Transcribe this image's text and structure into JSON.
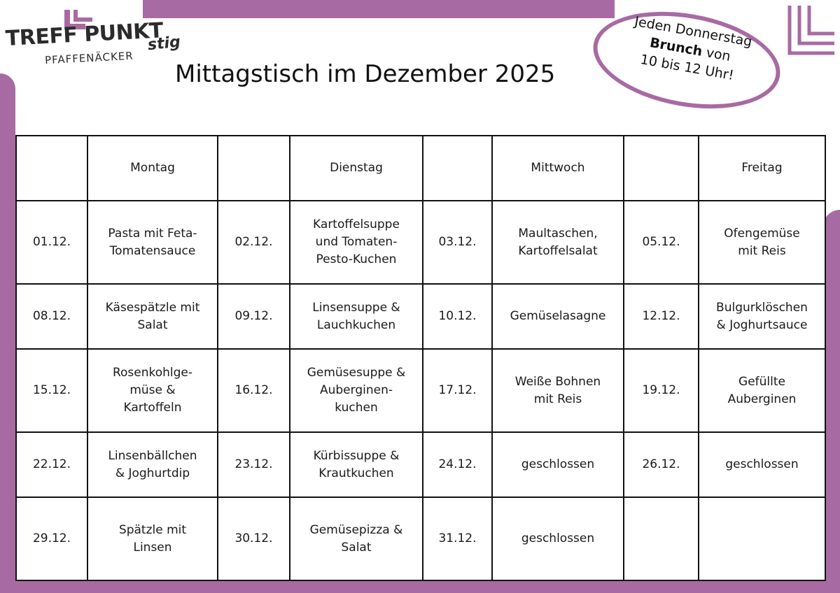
{
  "logo": {
    "line1": "TREFF PUNKT",
    "line2": "PFAFFENÄCKER",
    "partner": "stig"
  },
  "title": "Mittagstisch im Dezember 2025",
  "brunch_note": {
    "line1": "Jeden Donnerstag",
    "bold": "Brunch",
    "line2_rest": " von",
    "line3": "10 bis 12 Uhr!"
  },
  "colors": {
    "accent": "#a86aa3",
    "border": "#111111"
  },
  "table": {
    "header": [
      "",
      "Montag",
      "",
      "Dienstag",
      "",
      "Mittwoch",
      "",
      "Freitag"
    ],
    "rows": [
      [
        "01.12.",
        "Pasta mit Feta-\nTomatensauce",
        "02.12.",
        "Kartoffelsuppe\nund Tomaten-\nPesto-Kuchen",
        "03.12.",
        "Maultaschen,\nKartoffelsalat",
        "05.12.",
        "Ofengemüse\nmit Reis"
      ],
      [
        "08.12.",
        "Käsespätzle mit\nSalat",
        "09.12.",
        "Linsensuppe &\nLauchkuchen",
        "10.12.",
        "Gemüselasagne",
        "12.12.",
        "Bulgurklöschen\n& Joghurtsauce"
      ],
      [
        "15.12.",
        "Rosenkohlge-\nmüse &\nKartoffeln",
        "16.12.",
        "Gemüsesuppe &\nAuberginen-\nkuchen",
        "17.12.",
        "Weiße Bohnen\nmit Reis",
        "19.12.",
        "Gefüllte\nAuberginen"
      ],
      [
        "22.12.",
        "Linsenbällchen\n& Joghurtdip",
        "23.12.",
        "Kürbissuppe &\nKrautkuchen",
        "24.12.",
        "geschlossen",
        "26.12.",
        "geschlossen"
      ],
      [
        "29.12.",
        "Spätzle mit\nLinsen",
        "30.12.",
        "Gemüsepizza &\nSalat",
        "31.12.",
        "geschlossen",
        "",
        ""
      ]
    ]
  }
}
